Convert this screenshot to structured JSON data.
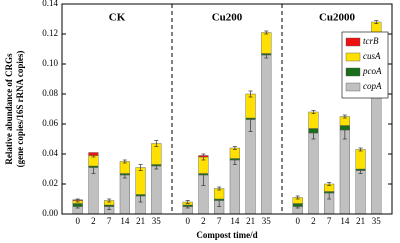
{
  "chart_data": {
    "type": "stacked_bar",
    "y_label": [
      "Relative abundance of CRGs",
      "(gene copies/16S rRNA copies)"
    ],
    "x_label": "Compost time/d",
    "groups": [
      "CK",
      "Cu200",
      "Cu2000"
    ],
    "categories": [
      "0",
      "2",
      "7",
      "14",
      "21",
      "35",
      "0",
      "2",
      "7",
      "14",
      "21",
      "35",
      "0",
      "2",
      "7",
      "14",
      "21",
      "35"
    ],
    "series": [
      {
        "name": "copA",
        "color": "#c0c0c0",
        "values": [
          0.005,
          0.031,
          0.005,
          0.026,
          0.012,
          0.032,
          0.005,
          0.026,
          0.009,
          0.036,
          0.063,
          0.106,
          0.005,
          0.054,
          0.014,
          0.056,
          0.029,
          0.106
        ],
        "errors": [
          0.001,
          0.004,
          0.002,
          0.002,
          0.004,
          0.002,
          0.001,
          0.007,
          0.004,
          0.003,
          0.008,
          0.002,
          0.001,
          0.004,
          0.004,
          0.006,
          0.002,
          0.001
        ]
      },
      {
        "name": "pcoA",
        "color": "#1a6e1a",
        "values": [
          0.002,
          0.001,
          0.001,
          0.001,
          0.001,
          0.001,
          0.001,
          0.001,
          0.001,
          0.001,
          0.001,
          0.001,
          0.002,
          0.003,
          0.001,
          0.003,
          0.001,
          0.001
        ]
      },
      {
        "name": "cusA",
        "color": "#ffe000",
        "values": [
          0.002,
          0.007,
          0.003,
          0.008,
          0.018,
          0.014,
          0.002,
          0.011,
          0.007,
          0.007,
          0.016,
          0.014,
          0.004,
          0.011,
          0.005,
          0.006,
          0.013,
          0.021
        ],
        "errors": [
          0.001,
          0.001,
          0.001,
          0.001,
          0.002,
          0.002,
          0.001,
          0.002,
          0.001,
          0.001,
          0.002,
          0.001,
          0.001,
          0.001,
          0.001,
          0.001,
          0.001,
          0.001
        ]
      },
      {
        "name": "tcrB",
        "color": "#ee1111",
        "values": [
          0.0005,
          0.002,
          0,
          0,
          0,
          0,
          0,
          0.001,
          0,
          0,
          0,
          0,
          0,
          0,
          0,
          0,
          0,
          0
        ]
      }
    ],
    "ylim": [
      0,
      0.14
    ],
    "yticks": [
      {
        "value": 0,
        "label": "0.00"
      },
      {
        "value": 0.02,
        "label": "0.02"
      },
      {
        "value": 0.04,
        "label": "0.04"
      },
      {
        "value": 0.06,
        "label": "0.06"
      },
      {
        "value": 0.08,
        "label": "0.08"
      },
      {
        "value": 0.1,
        "label": "0.10"
      },
      {
        "value": 0.12,
        "label": "0.12"
      },
      {
        "value": 0.14,
        "label": "0.14"
      }
    ],
    "legend": "upper right"
  }
}
